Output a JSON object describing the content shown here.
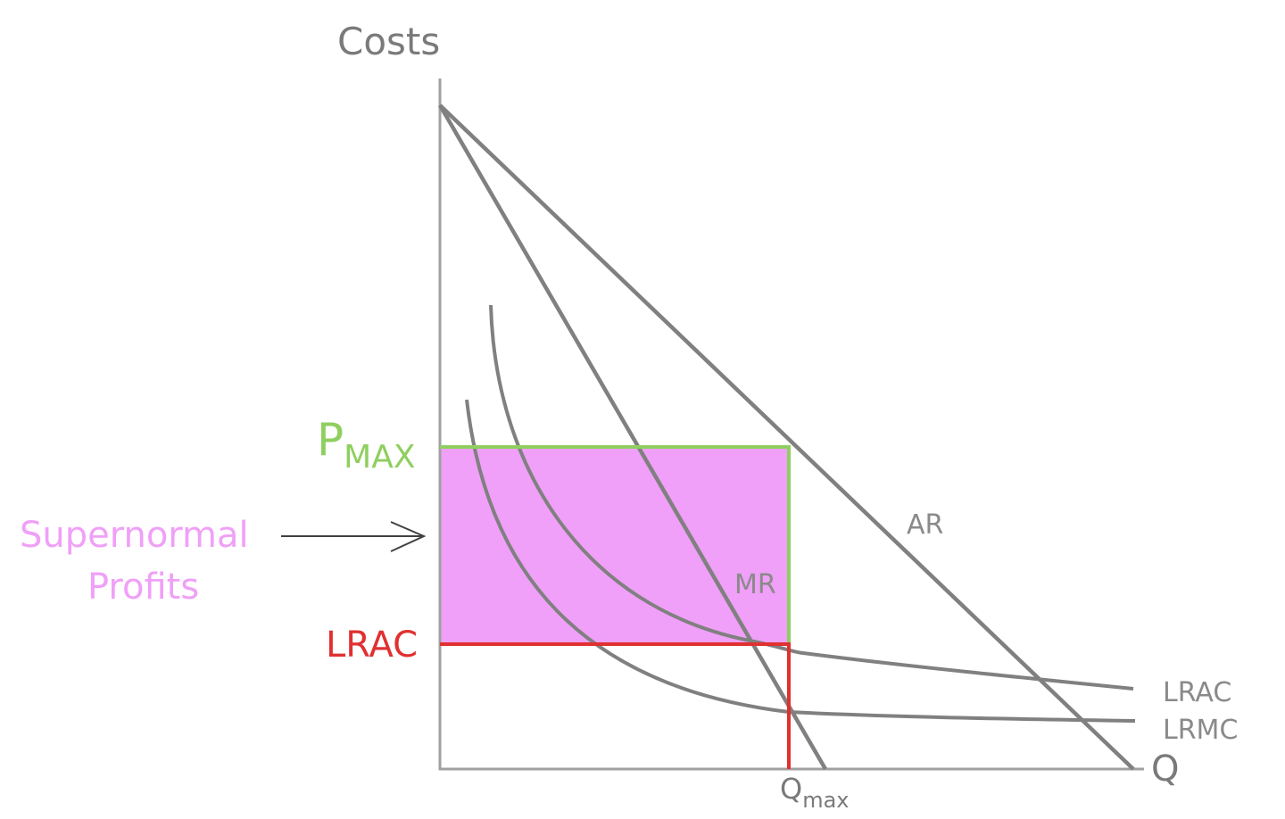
{
  "labels": {
    "y_axis": "Costs",
    "x_axis": "Q",
    "pmax_main": "P",
    "pmax_sub": "MAX",
    "supernormal_line1": "Supernormal",
    "supernormal_line2": "Profits",
    "lrac_level": "LRAC",
    "ar": "AR",
    "mr": "MR",
    "lrac_curve": "LRAC",
    "lrmc_curve": "LRMC",
    "qmax_main": "Q",
    "qmax_sub": "max"
  },
  "colors": {
    "axis": "#9a9a9a",
    "curve": "#808080",
    "pmax": "#8fcf5f",
    "profit_fill": "#f0a0f8",
    "profit_text": "#f0a0f8",
    "lrac_level": "#e03030",
    "label_gray": "#8a8a8a",
    "arrow": "#404040"
  }
}
